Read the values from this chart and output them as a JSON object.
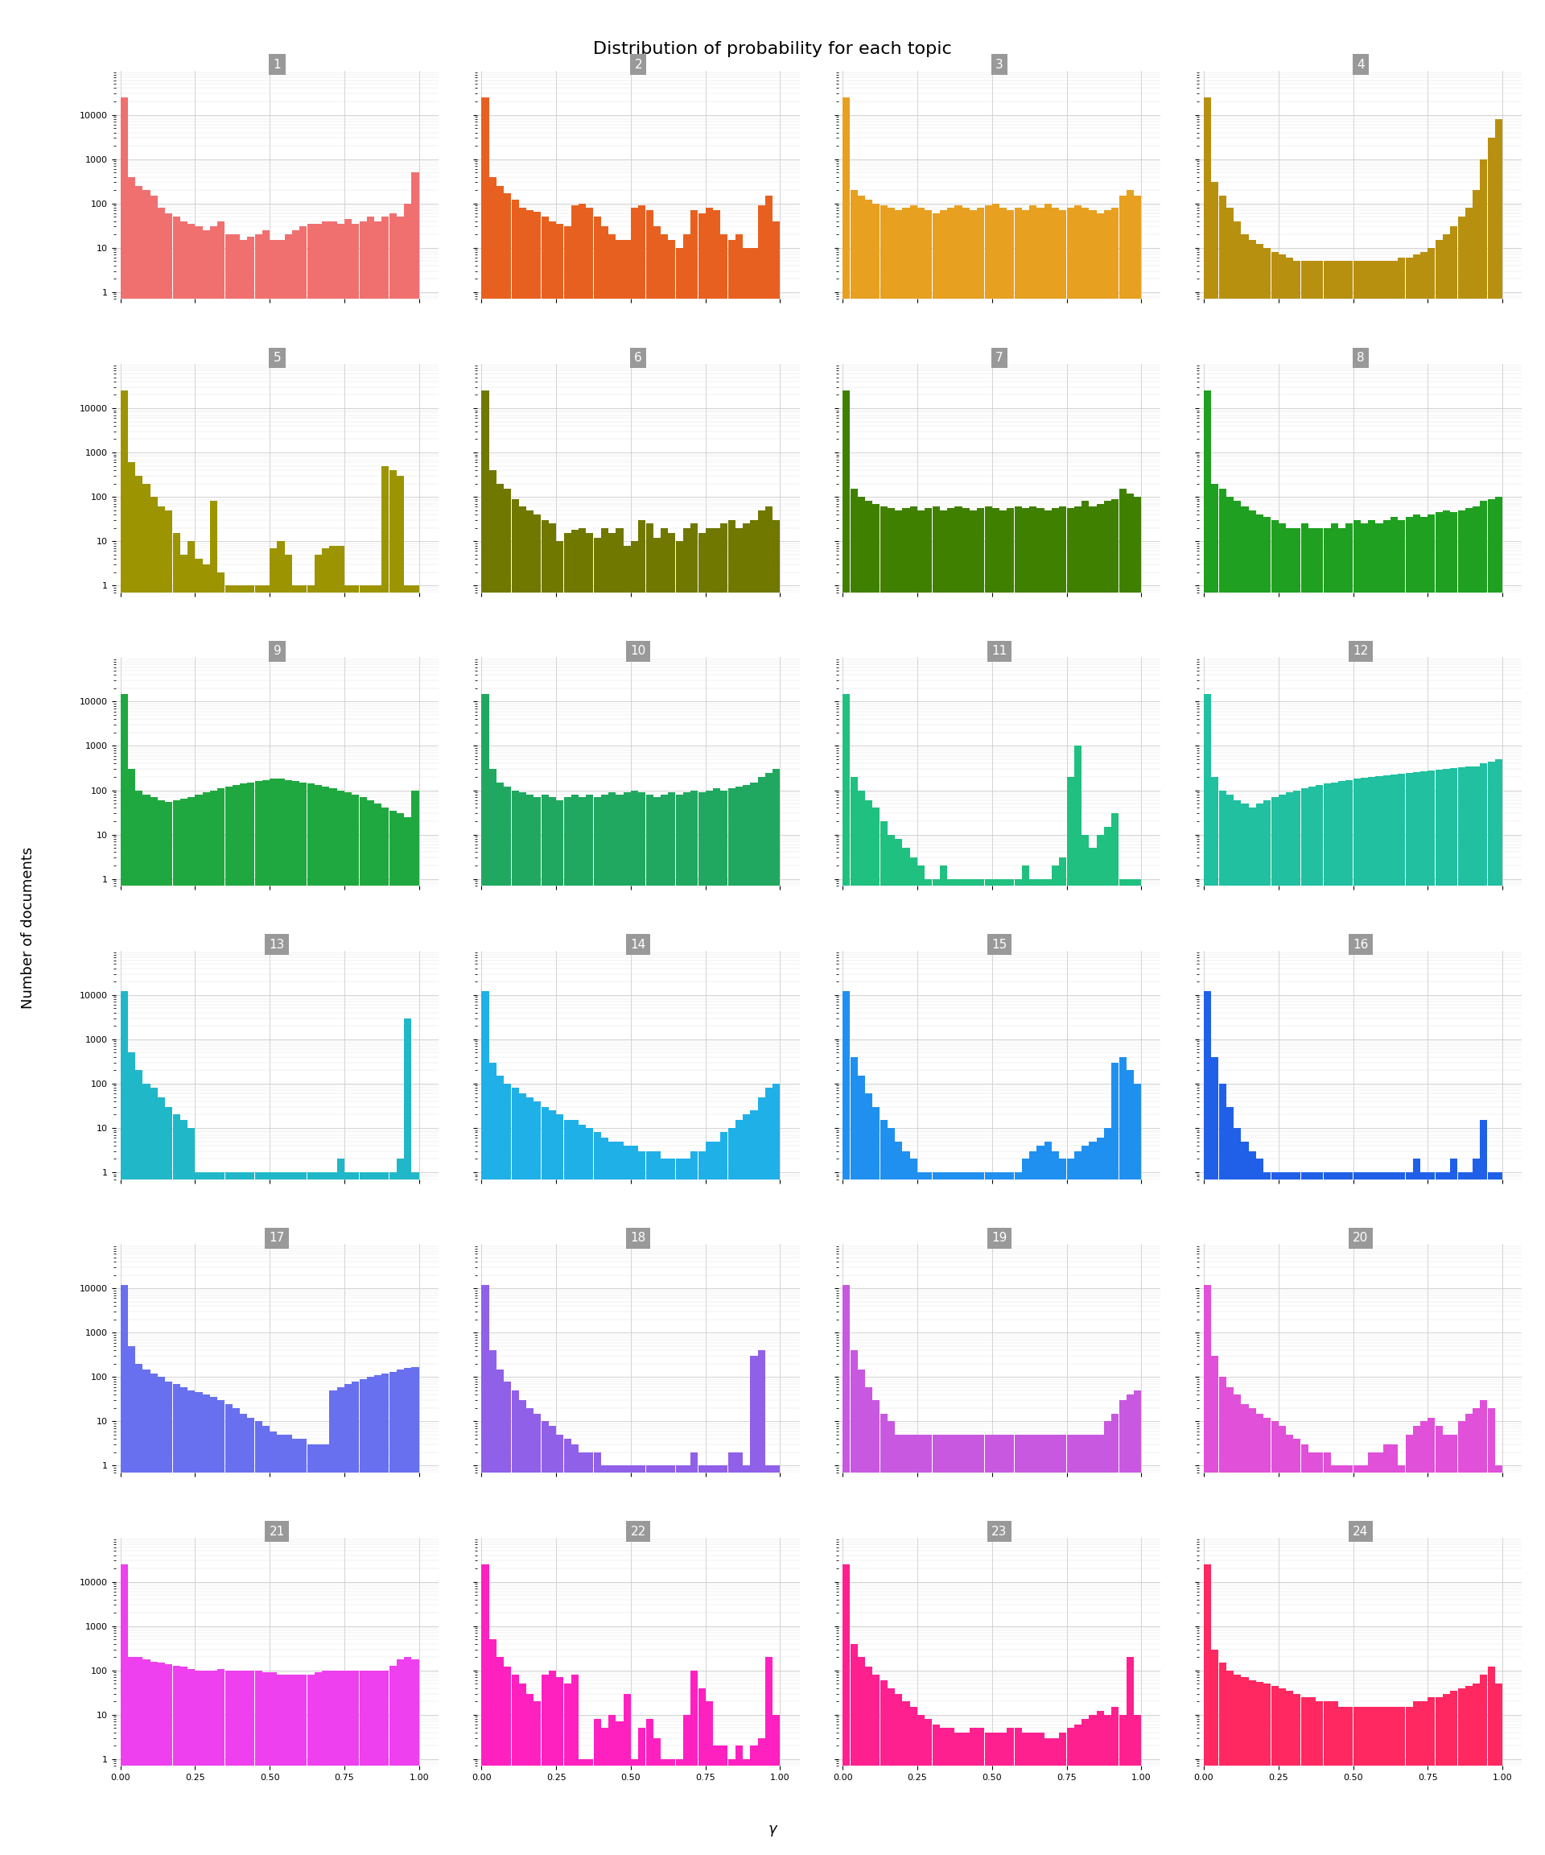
{
  "title": "Distribution of probability for each topic",
  "n_topics": 24,
  "n_cols": 4,
  "n_rows": 6,
  "xlabel": "γ",
  "ylabel": "Number of documents",
  "topic_colors": [
    "#F07070",
    "#E86020",
    "#E8A020",
    "#B89010",
    "#9C9400",
    "#707800",
    "#408000",
    "#20A020",
    "#20A840",
    "#20A860",
    "#20C080",
    "#20C0A0",
    "#20B8C8",
    "#20B0E8",
    "#2090F0",
    "#2060E8",
    "#6870F0",
    "#9060E8",
    "#C858E0",
    "#E050D8",
    "#EE40EE",
    "#FF20C0",
    "#FF2090",
    "#FF2860"
  ],
  "header_color": "#999999",
  "ylim": [
    0.7,
    100000
  ],
  "n_bins": 40,
  "hist_data": {
    "1": [
      25000,
      400,
      250,
      200,
      150,
      80,
      60,
      50,
      40,
      35,
      30,
      25,
      30,
      40,
      20,
      20,
      15,
      18,
      20,
      25,
      15,
      15,
      20,
      25,
      30,
      35,
      35,
      40,
      40,
      35,
      45,
      35,
      40,
      50,
      40,
      50,
      60,
      50,
      100,
      500
    ],
    "2": [
      25000,
      400,
      250,
      170,
      120,
      80,
      70,
      65,
      50,
      40,
      35,
      30,
      90,
      100,
      80,
      50,
      30,
      20,
      15,
      15,
      80,
      90,
      70,
      30,
      20,
      15,
      10,
      20,
      70,
      60,
      80,
      70,
      20,
      15,
      20,
      10,
      10,
      90,
      150,
      40
    ],
    "3": [
      25000,
      200,
      150,
      120,
      100,
      90,
      80,
      70,
      80,
      90,
      80,
      70,
      60,
      70,
      80,
      90,
      80,
      70,
      80,
      90,
      100,
      80,
      70,
      80,
      70,
      90,
      80,
      100,
      80,
      70,
      80,
      90,
      80,
      70,
      60,
      70,
      80,
      150,
      200,
      150
    ],
    "4": [
      25000,
      300,
      150,
      80,
      40,
      20,
      15,
      12,
      10,
      8,
      7,
      6,
      5,
      5,
      5,
      5,
      5,
      5,
      5,
      5,
      5,
      5,
      5,
      5,
      5,
      5,
      6,
      6,
      7,
      8,
      10,
      15,
      20,
      30,
      50,
      80,
      200,
      1000,
      3000,
      8000
    ],
    "5": [
      25000,
      600,
      300,
      200,
      100,
      60,
      50,
      15,
      5,
      10,
      4,
      3,
      80,
      2,
      1,
      1,
      1,
      1,
      1,
      1,
      7,
      10,
      5,
      1,
      1,
      1,
      5,
      7,
      8,
      8,
      1,
      1,
      1,
      1,
      1,
      500,
      400,
      300,
      1,
      1
    ],
    "6": [
      25000,
      400,
      200,
      150,
      90,
      60,
      50,
      40,
      30,
      25,
      10,
      15,
      18,
      20,
      15,
      12,
      20,
      15,
      20,
      8,
      10,
      30,
      25,
      12,
      20,
      15,
      10,
      20,
      25,
      15,
      20,
      20,
      25,
      30,
      20,
      25,
      30,
      50,
      60,
      30
    ],
    "7": [
      25000,
      150,
      100,
      80,
      70,
      60,
      55,
      50,
      55,
      60,
      50,
      55,
      60,
      50,
      55,
      60,
      55,
      50,
      55,
      60,
      55,
      50,
      55,
      60,
      55,
      60,
      55,
      50,
      55,
      60,
      55,
      60,
      80,
      60,
      70,
      80,
      90,
      150,
      120,
      100
    ],
    "8": [
      25000,
      200,
      150,
      100,
      80,
      60,
      50,
      40,
      35,
      30,
      25,
      20,
      20,
      25,
      20,
      20,
      20,
      25,
      20,
      25,
      30,
      25,
      30,
      25,
      30,
      35,
      30,
      35,
      40,
      35,
      40,
      45,
      50,
      45,
      50,
      55,
      60,
      80,
      90,
      100
    ],
    "9": [
      15000,
      300,
      100,
      80,
      70,
      60,
      55,
      60,
      65,
      70,
      80,
      90,
      100,
      110,
      120,
      130,
      140,
      150,
      160,
      170,
      180,
      180,
      170,
      160,
      150,
      140,
      130,
      120,
      110,
      100,
      90,
      80,
      70,
      60,
      50,
      40,
      35,
      30,
      25,
      100
    ],
    "10": [
      15000,
      300,
      150,
      120,
      100,
      90,
      80,
      70,
      80,
      70,
      60,
      70,
      80,
      70,
      80,
      70,
      80,
      90,
      80,
      90,
      100,
      90,
      80,
      70,
      80,
      90,
      80,
      90,
      100,
      90,
      100,
      110,
      100,
      110,
      120,
      130,
      150,
      200,
      250,
      300
    ],
    "11": [
      15000,
      200,
      100,
      60,
      40,
      20,
      10,
      8,
      5,
      3,
      2,
      1,
      1,
      2,
      1,
      1,
      1,
      1,
      1,
      1,
      1,
      1,
      1,
      1,
      2,
      1,
      1,
      1,
      2,
      3,
      200,
      1000,
      10,
      5,
      10,
      15,
      30,
      1,
      1,
      1
    ],
    "12": [
      15000,
      200,
      100,
      80,
      60,
      50,
      40,
      50,
      60,
      70,
      80,
      90,
      100,
      110,
      120,
      130,
      140,
      150,
      160,
      170,
      180,
      190,
      200,
      210,
      220,
      230,
      240,
      250,
      260,
      270,
      280,
      290,
      300,
      320,
      330,
      340,
      350,
      400,
      450,
      500
    ],
    "13": [
      12000,
      500,
      200,
      100,
      80,
      50,
      30,
      20,
      15,
      10,
      1,
      1,
      1,
      1,
      1,
      1,
      1,
      1,
      1,
      1,
      1,
      1,
      1,
      1,
      1,
      1,
      1,
      1,
      1,
      2,
      1,
      1,
      1,
      1,
      1,
      1,
      1,
      2,
      3000,
      1
    ],
    "14": [
      12000,
      300,
      150,
      100,
      80,
      60,
      50,
      40,
      30,
      25,
      20,
      15,
      15,
      12,
      10,
      8,
      6,
      5,
      5,
      4,
      4,
      3,
      3,
      3,
      2,
      2,
      2,
      2,
      3,
      3,
      5,
      5,
      8,
      10,
      15,
      20,
      25,
      50,
      80,
      100
    ],
    "15": [
      12000,
      400,
      150,
      60,
      30,
      15,
      10,
      5,
      3,
      2,
      1,
      1,
      1,
      1,
      1,
      1,
      1,
      1,
      1,
      1,
      1,
      1,
      1,
      1,
      2,
      3,
      4,
      5,
      3,
      2,
      2,
      3,
      4,
      5,
      6,
      10,
      300,
      400,
      200,
      100
    ],
    "16": [
      12000,
      400,
      100,
      30,
      10,
      5,
      3,
      2,
      1,
      1,
      1,
      1,
      1,
      1,
      1,
      1,
      1,
      1,
      1,
      1,
      1,
      1,
      1,
      1,
      1,
      1,
      1,
      1,
      2,
      1,
      1,
      1,
      1,
      2,
      1,
      1,
      2,
      15,
      1,
      1
    ],
    "17": [
      12000,
      500,
      200,
      150,
      120,
      100,
      80,
      70,
      60,
      50,
      45,
      40,
      35,
      30,
      25,
      20,
      15,
      12,
      10,
      8,
      6,
      5,
      5,
      4,
      4,
      3,
      3,
      3,
      50,
      60,
      70,
      80,
      90,
      100,
      110,
      120,
      130,
      150,
      160,
      170
    ],
    "18": [
      12000,
      400,
      150,
      80,
      50,
      30,
      20,
      15,
      10,
      8,
      5,
      4,
      3,
      2,
      2,
      2,
      1,
      1,
      1,
      1,
      1,
      1,
      1,
      1,
      1,
      1,
      1,
      1,
      2,
      1,
      1,
      1,
      1,
      2,
      2,
      1,
      300,
      400,
      1,
      1
    ],
    "19": [
      12000,
      400,
      150,
      60,
      30,
      15,
      10,
      5,
      5,
      5,
      5,
      5,
      5,
      5,
      5,
      5,
      5,
      5,
      5,
      5,
      5,
      5,
      5,
      5,
      5,
      5,
      5,
      5,
      5,
      5,
      5,
      5,
      5,
      5,
      5,
      10,
      15,
      30,
      40,
      50
    ],
    "20": [
      12000,
      300,
      100,
      60,
      40,
      25,
      20,
      15,
      12,
      10,
      8,
      5,
      4,
      3,
      2,
      2,
      2,
      1,
      1,
      1,
      1,
      1,
      2,
      2,
      3,
      3,
      1,
      5,
      8,
      10,
      12,
      8,
      5,
      5,
      10,
      15,
      20,
      30,
      20,
      1
    ],
    "21": [
      25000,
      200,
      200,
      180,
      160,
      150,
      140,
      130,
      120,
      110,
      100,
      100,
      100,
      110,
      100,
      100,
      100,
      100,
      100,
      90,
      90,
      80,
      80,
      80,
      80,
      80,
      90,
      100,
      100,
      100,
      100,
      100,
      100,
      100,
      100,
      100,
      130,
      180,
      200,
      180
    ],
    "22": [
      25000,
      500,
      200,
      120,
      80,
      50,
      30,
      20,
      80,
      100,
      70,
      50,
      80,
      1,
      1,
      8,
      5,
      10,
      7,
      30,
      1,
      5,
      8,
      3,
      1,
      1,
      1,
      10,
      100,
      40,
      20,
      2,
      2,
      1,
      2,
      1,
      2,
      3,
      200,
      10
    ],
    "23": [
      25000,
      400,
      200,
      120,
      80,
      60,
      40,
      30,
      20,
      15,
      10,
      8,
      6,
      5,
      5,
      4,
      4,
      5,
      5,
      4,
      4,
      4,
      5,
      5,
      4,
      4,
      4,
      3,
      3,
      4,
      5,
      6,
      8,
      10,
      12,
      10,
      15,
      10,
      200,
      10
    ],
    "24": [
      25000,
      300,
      150,
      100,
      80,
      70,
      60,
      55,
      50,
      45,
      40,
      35,
      30,
      25,
      25,
      20,
      20,
      20,
      15,
      15,
      15,
      15,
      15,
      15,
      15,
      15,
      15,
      15,
      20,
      20,
      25,
      25,
      30,
      35,
      40,
      45,
      50,
      80,
      120,
      50
    ]
  }
}
